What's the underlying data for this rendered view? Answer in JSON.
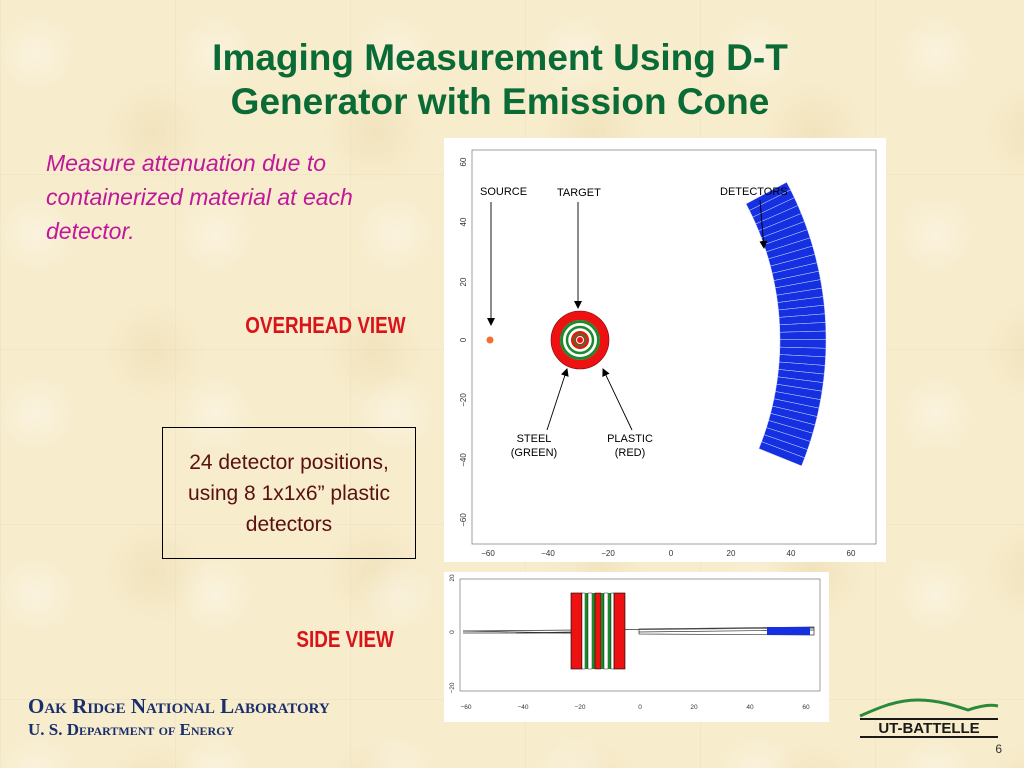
{
  "slide": {
    "title_line1": "Imaging Measurement Using D-T",
    "title_line2": "Generator with Emission Cone",
    "intro": "Measure attenuation due to containerized material at each detector.",
    "overhead_label": "OVERHEAD VIEW",
    "side_label": "SIDE VIEW",
    "detector_box": "24 detector positions, using 8 1x1x6” plastic detectors",
    "footer_lab": "Oak Ridge National Laboratory",
    "footer_doe": "U. S. Department of Energy",
    "logo_text": "UT-BATTELLE",
    "page_number": "6"
  },
  "overhead_view": {
    "callouts": {
      "source": "SOURCE",
      "target": "TARGET",
      "detectors": "DETECTORS",
      "steel_line1": "STEEL",
      "steel_line2": "(GREEN)",
      "plastic_line1": "PLASTIC",
      "plastic_line2": "(RED)"
    },
    "x_ticks": [
      "−60",
      "−40",
      "−20",
      "0",
      "20",
      "40",
      "60"
    ],
    "y_ticks": [
      "60",
      "40",
      "20",
      "0",
      "−20",
      "−40",
      "−60"
    ]
  },
  "side_view": {
    "x_ticks": [
      "−60",
      "−40",
      "−20",
      "0",
      "20",
      "40",
      "60"
    ],
    "y_ticks": [
      "20",
      "0",
      "−20"
    ]
  },
  "colors": {
    "title": "#0b6b36",
    "intro": "#c0189a",
    "view_label": "#d8141a",
    "plastic": "#ee1111",
    "steel": "#1a8a2a",
    "detector": "#1530e0",
    "source": "#f07030",
    "footer": "#1a2e6e"
  }
}
